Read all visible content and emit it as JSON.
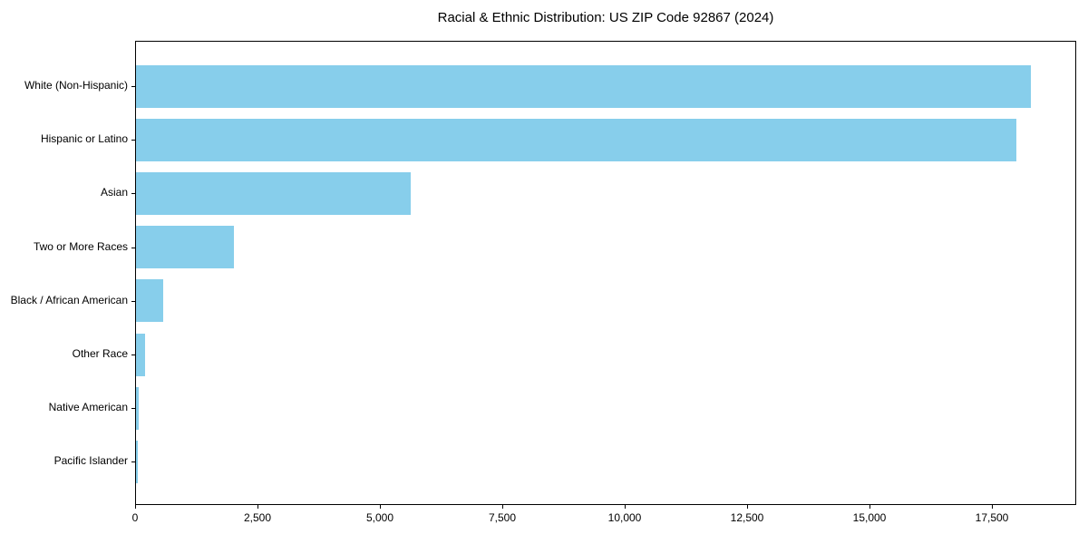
{
  "chart_data": {
    "type": "bar",
    "orientation": "horizontal",
    "title": "Racial & Ethnic Distribution: US ZIP Code 92867 (2024)",
    "categories": [
      "White (Non-Hispanic)",
      "Hispanic or Latino",
      "Asian",
      "Two or More Races",
      "Black / African American",
      "Other Race",
      "Native American",
      "Pacific Islander"
    ],
    "values": [
      18280,
      17980,
      5610,
      2000,
      560,
      185,
      50,
      40
    ],
    "xlabel": "",
    "ylabel": "",
    "xlim": [
      0,
      19222
    ],
    "xticks": [
      0,
      2500,
      5000,
      7500,
      10000,
      12500,
      15000,
      17500
    ],
    "xtick_labels": [
      "0",
      "2,500",
      "5,000",
      "7,500",
      "10,000",
      "12,500",
      "15,000",
      "17,500"
    ],
    "bar_color": "#87CEEB",
    "axis_color": "#000000",
    "text_color": "#000000",
    "background_color": "#ffffff",
    "grid": false,
    "legend": false
  }
}
